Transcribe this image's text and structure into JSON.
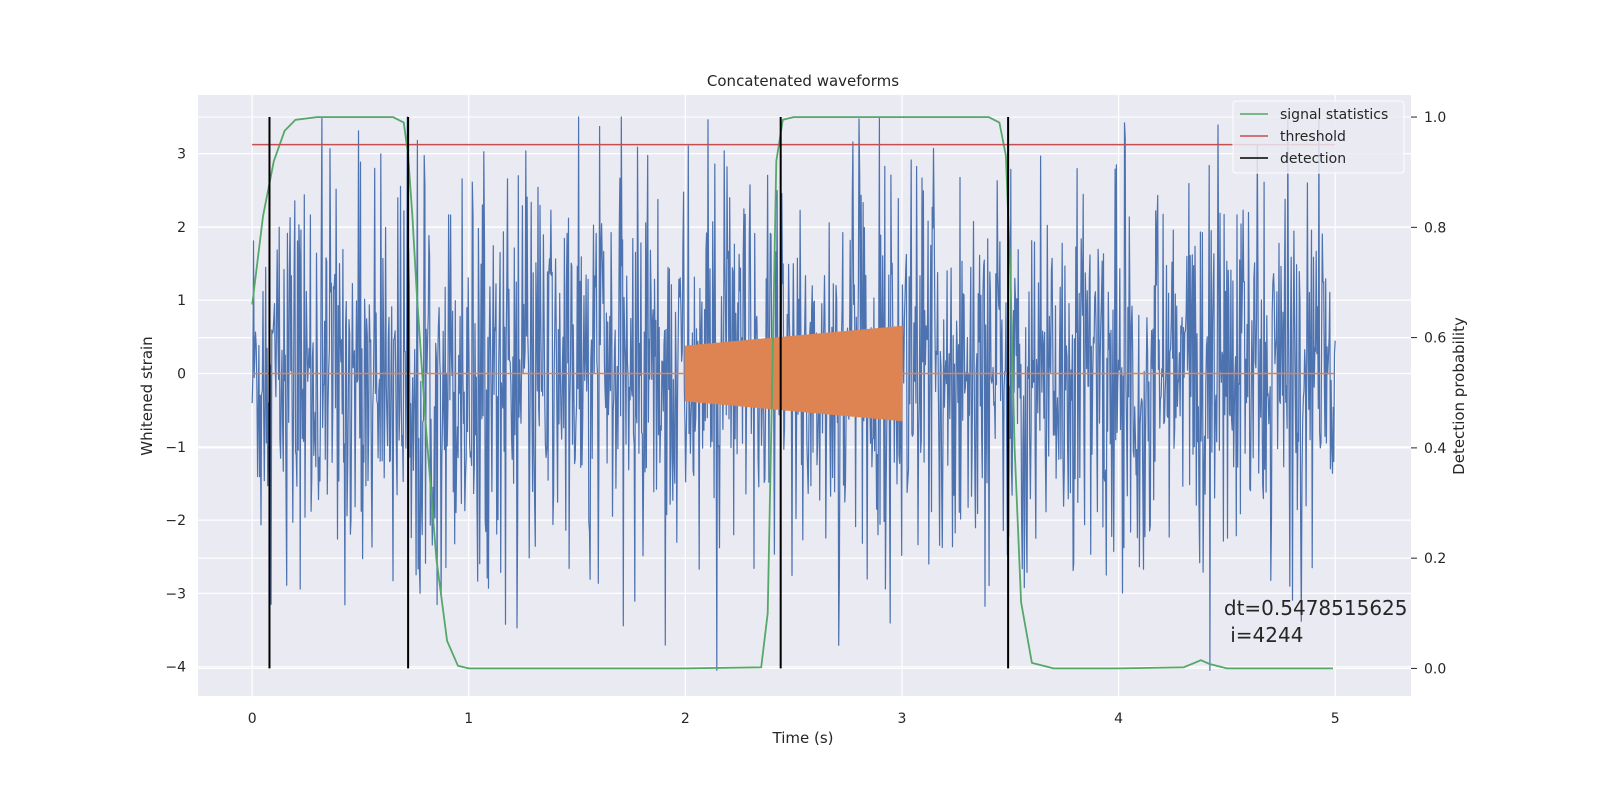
{
  "chart_data": {
    "type": "line",
    "title": "Concatenated waveforms",
    "xlabel": "Time (s)",
    "ylabel": "Whitened strain",
    "y2label": "Detection probability",
    "xlim": [
      -0.25,
      5.35
    ],
    "ylim": [
      -4.4,
      3.8
    ],
    "y2lim": [
      -0.05,
      1.04
    ],
    "x_ticks": [
      0,
      1,
      2,
      3,
      4,
      5
    ],
    "x_tick_labels": [
      "0",
      "1",
      "2",
      "3",
      "4",
      "5"
    ],
    "y_ticks": [
      3,
      2,
      1,
      0,
      -1,
      -2,
      -3,
      -4
    ],
    "y_tick_labels": [
      "3",
      "2",
      "1",
      "0",
      "−1",
      "−2",
      "−3",
      "−4"
    ],
    "y2_ticks": [
      1.0,
      0.8,
      0.6,
      0.4,
      0.2,
      0.0
    ],
    "y2_tick_labels": [
      "1.0",
      "0.8",
      "0.6",
      "0.4",
      "0.2",
      "0.0"
    ],
    "grid": true,
    "legend_position": "top-right",
    "colors": {
      "strain": "#4c72b0",
      "injection": "#dd8452",
      "signal_statistics": "#55a868",
      "threshold": "#c44e52",
      "detection": "#000000",
      "background": "#eaeaf2",
      "grid": "#ffffff"
    },
    "strain": {
      "x_range": [
        0,
        5
      ],
      "samples": 1600,
      "typical_amplitude": 1.3,
      "min": -4.05,
      "max": 3.5
    },
    "injection": {
      "x_range": [
        2.0,
        3.0
      ],
      "amplitude_start": 0.38,
      "amplitude_end": 0.65,
      "baseline": 0
    },
    "series": [
      {
        "name": "signal statistics",
        "axis": "right",
        "x": [
          0.0,
          0.05,
          0.1,
          0.15,
          0.2,
          0.3,
          0.5,
          0.65,
          0.7,
          0.72,
          0.74,
          0.76,
          0.8,
          0.85,
          0.9,
          0.95,
          1.0,
          1.5,
          2.0,
          2.35,
          2.38,
          2.4,
          2.42,
          2.45,
          2.5,
          3.0,
          3.4,
          3.45,
          3.48,
          3.5,
          3.52,
          3.55,
          3.6,
          3.7,
          4.0,
          4.3,
          4.35,
          4.38,
          4.42,
          4.5,
          4.99
        ],
        "y": [
          0.66,
          0.82,
          0.92,
          0.975,
          0.995,
          1.0,
          1.0,
          1.0,
          0.99,
          0.93,
          0.82,
          0.68,
          0.45,
          0.2,
          0.05,
          0.005,
          0.0,
          0.0,
          0.0,
          0.002,
          0.1,
          0.5,
          0.92,
          0.995,
          1.0,
          1.0,
          1.0,
          0.99,
          0.93,
          0.72,
          0.4,
          0.12,
          0.01,
          0.0,
          0.0,
          0.002,
          0.01,
          0.015,
          0.008,
          0.0,
          0.0
        ]
      },
      {
        "name": "threshold",
        "axis": "right",
        "x": [
          0,
          5
        ],
        "y": [
          0.95,
          0.95
        ]
      },
      {
        "name": "detection",
        "axis": "right",
        "vlines": [
          0.08,
          0.72,
          2.44,
          3.49
        ],
        "y_range": [
          0.0,
          1.0
        ]
      }
    ],
    "annotation": {
      "line1": "dt=0.5478515625",
      "line2": " i=4244",
      "x": 4.5,
      "y": -3.2
    }
  }
}
